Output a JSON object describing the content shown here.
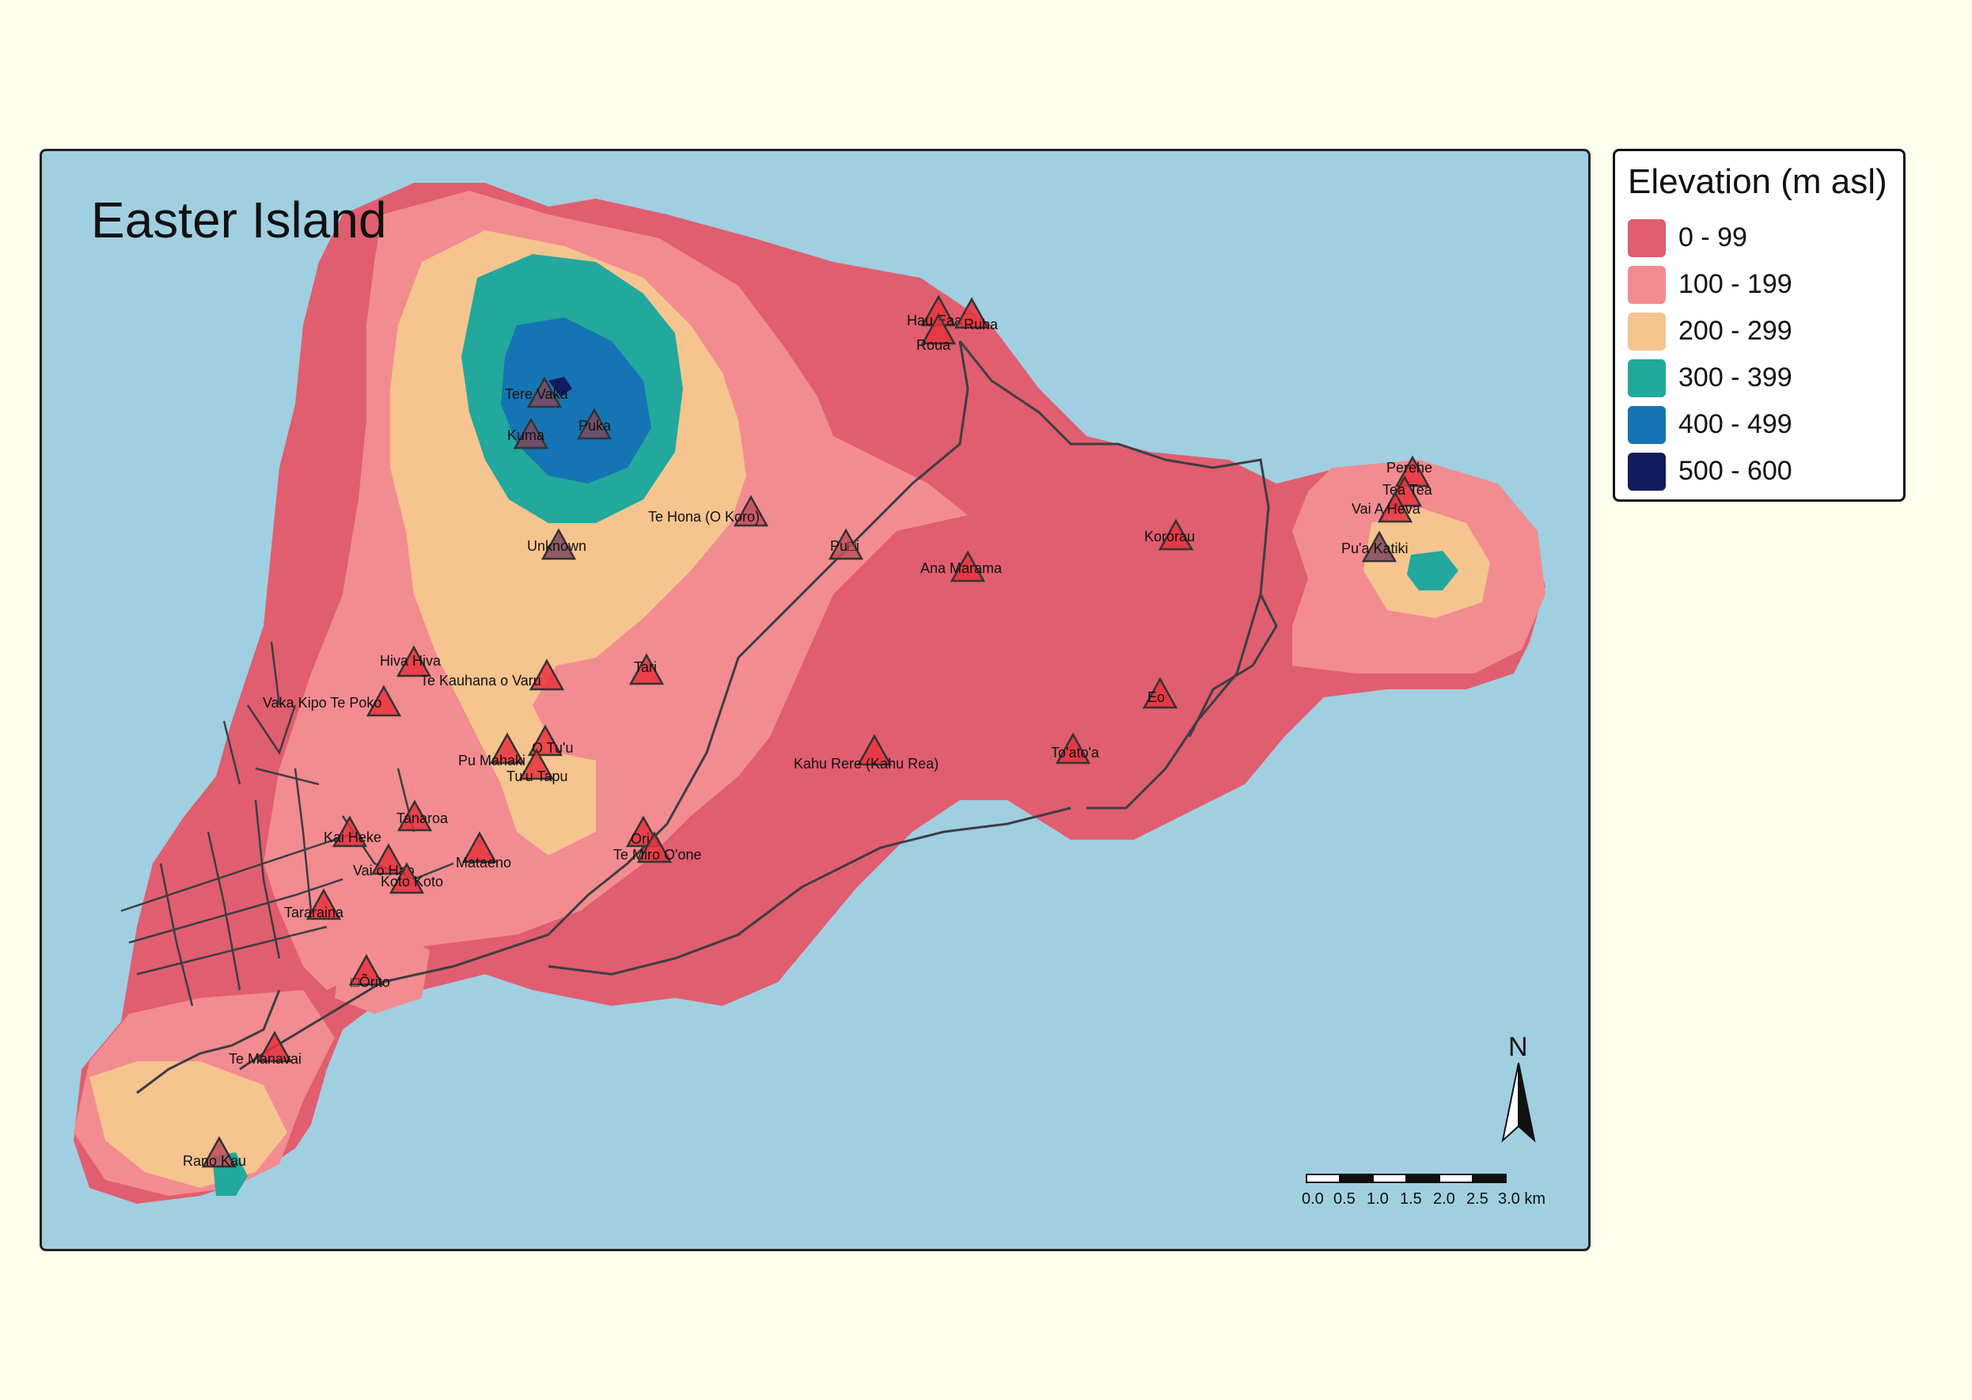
{
  "map": {
    "title": "Easter Island",
    "north_label": "N",
    "scale_labels": [
      "0.0",
      "0.5",
      "1.0",
      "1.5",
      "2.0",
      "2.5",
      "3.0 km"
    ]
  },
  "legend": {
    "title": "Elevation (m asl)",
    "classes": [
      {
        "label": "0 - 99",
        "color": "#E05E6F"
      },
      {
        "label": "100 - 199",
        "color": "#F28C91"
      },
      {
        "label": "200 - 299",
        "color": "#F5C48F"
      },
      {
        "label": "300 - 399",
        "color": "#22A89D"
      },
      {
        "label": "400 - 499",
        "color": "#1575B4"
      },
      {
        "label": "500 - 600",
        "color": "#131B5E"
      }
    ]
  },
  "colors": {
    "ocean": "#A0CFE1",
    "background": "#FFFFEE",
    "road": "#3D3D46",
    "marker_low": "#E8333D",
    "marker_mid": "#C0505A",
    "marker_high": "#7E4A5F"
  },
  "sites": [
    {
      "name": "Hau Eaa"
    },
    {
      "name": "Roua"
    },
    {
      "name": "Ruha"
    },
    {
      "name": "Tere Vaka"
    },
    {
      "name": "Kuma"
    },
    {
      "name": "Puka"
    },
    {
      "name": "Te Hona (O Koro)"
    },
    {
      "name": "Pu□i"
    },
    {
      "name": "Unknown"
    },
    {
      "name": "Kororau"
    },
    {
      "name": "Ana Marama"
    },
    {
      "name": "Perehe"
    },
    {
      "name": "Tea Tea"
    },
    {
      "name": "Vai A Heva"
    },
    {
      "name": "Pu'a Katiki"
    },
    {
      "name": "Hiva Hiva"
    },
    {
      "name": "Tari"
    },
    {
      "name": "Te Kauhana o Varu"
    },
    {
      "name": "Vaka Kipo Te Poko"
    },
    {
      "name": "Eo"
    },
    {
      "name": "Pu Mahaki"
    },
    {
      "name": "O Tu'u"
    },
    {
      "name": "Tu'u Tapu"
    },
    {
      "name": "Kahu Rere (Kahu Rea)"
    },
    {
      "name": "To'ato'a"
    },
    {
      "name": "Tanaroa"
    },
    {
      "name": "Kai Heke"
    },
    {
      "name": "Ori"
    },
    {
      "name": "Te Miro O'one"
    },
    {
      "name": "Mataeno"
    },
    {
      "name": "Vai o Hao"
    },
    {
      "name": "Koto Koto"
    },
    {
      "name": "Tararaina"
    },
    {
      "name": "□Õrito"
    },
    {
      "name": "Te Manavai"
    },
    {
      "name": "Rano Kau"
    }
  ]
}
